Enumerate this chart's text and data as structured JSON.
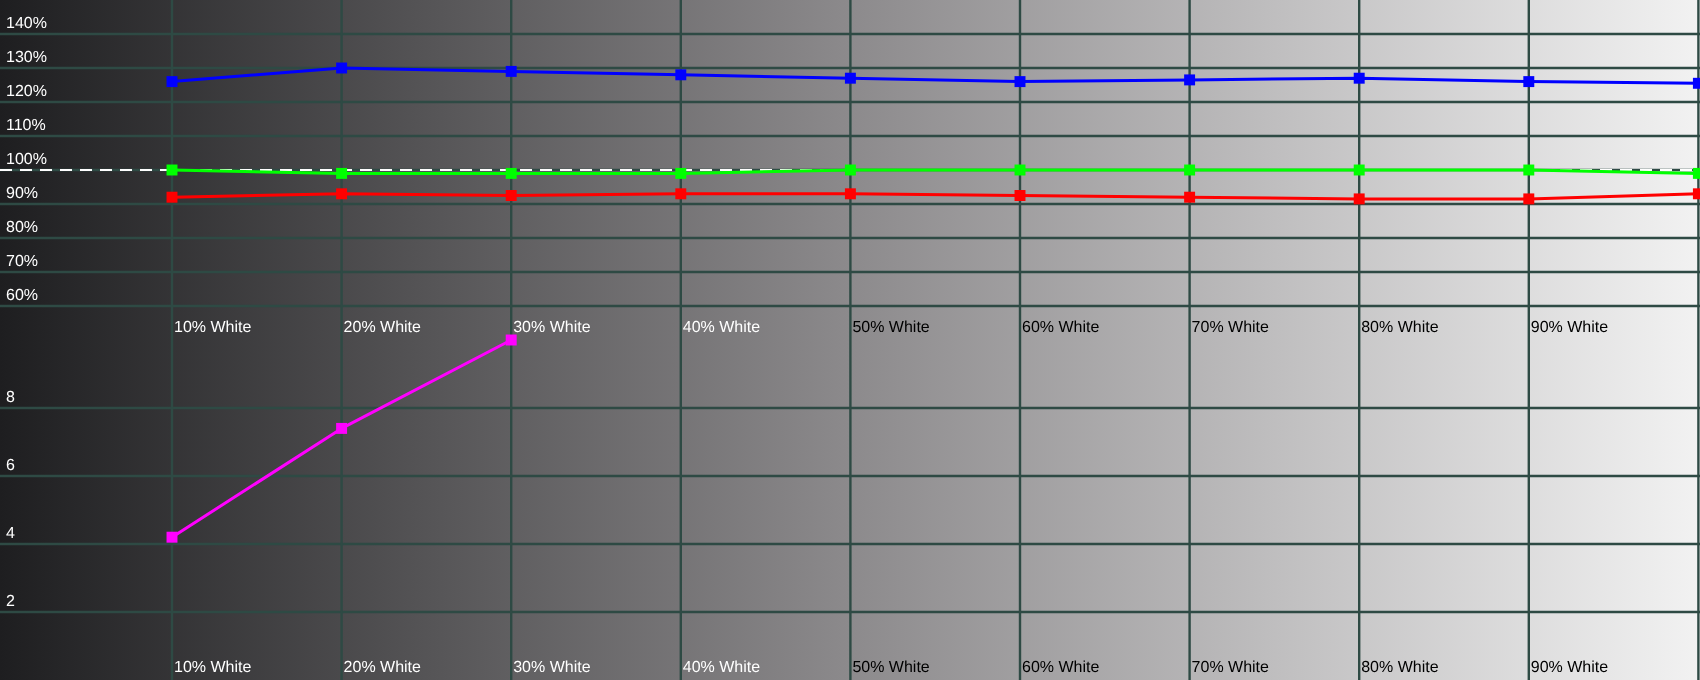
{
  "chart_data": [
    {
      "type": "line",
      "categories": [
        "10% White",
        "20% White",
        "30% White",
        "40% White",
        "50% White",
        "60% White",
        "70% White",
        "80% White",
        "90% White",
        null
      ],
      "series": [
        {
          "color": "#0000ff",
          "values": [
            126,
            130,
            129,
            128,
            127,
            126,
            126.5,
            127,
            126,
            125.5
          ]
        },
        {
          "color": "#00ff00",
          "values": [
            100,
            99,
            99,
            99,
            100,
            100,
            100,
            100,
            100,
            99
          ]
        },
        {
          "color": "#ff0000",
          "values": [
            92,
            93,
            92.5,
            93,
            93,
            92.5,
            92,
            91.5,
            91.5,
            93
          ]
        }
      ],
      "ylim": [
        50,
        150
      ],
      "yticks": [
        {
          "value": 60,
          "label": "60%"
        },
        {
          "value": 70,
          "label": "70%"
        },
        {
          "value": 80,
          "label": "80%"
        },
        {
          "value": 90,
          "label": "90%"
        },
        {
          "value": 100,
          "label": "100%"
        },
        {
          "value": 110,
          "label": "110%"
        },
        {
          "value": 120,
          "label": "120%"
        },
        {
          "value": 130,
          "label": "130%"
        },
        {
          "value": 140,
          "label": "140%"
        }
      ],
      "ref_lines": [
        {
          "axis": "y",
          "value": 100,
          "color": "#ffffff",
          "line_style": "dashed"
        }
      ],
      "grid": true,
      "marker": "square",
      "line_style": "solid"
    },
    {
      "type": "line",
      "categories": [
        "10% White",
        "20% White",
        "30% White",
        "40% White",
        "50% White",
        "60% White",
        "70% White",
        "80% White",
        "90% White",
        null
      ],
      "series": [
        {
          "color": "#ff00ff",
          "values": [
            4.2,
            7.4,
            10,
            null,
            null,
            null,
            null,
            null,
            null,
            null
          ]
        }
      ],
      "ylim": [
        0,
        10
      ],
      "yticks": [
        2,
        4,
        6,
        8
      ],
      "grid": true,
      "marker": "square",
      "line_style": "solid"
    }
  ]
}
